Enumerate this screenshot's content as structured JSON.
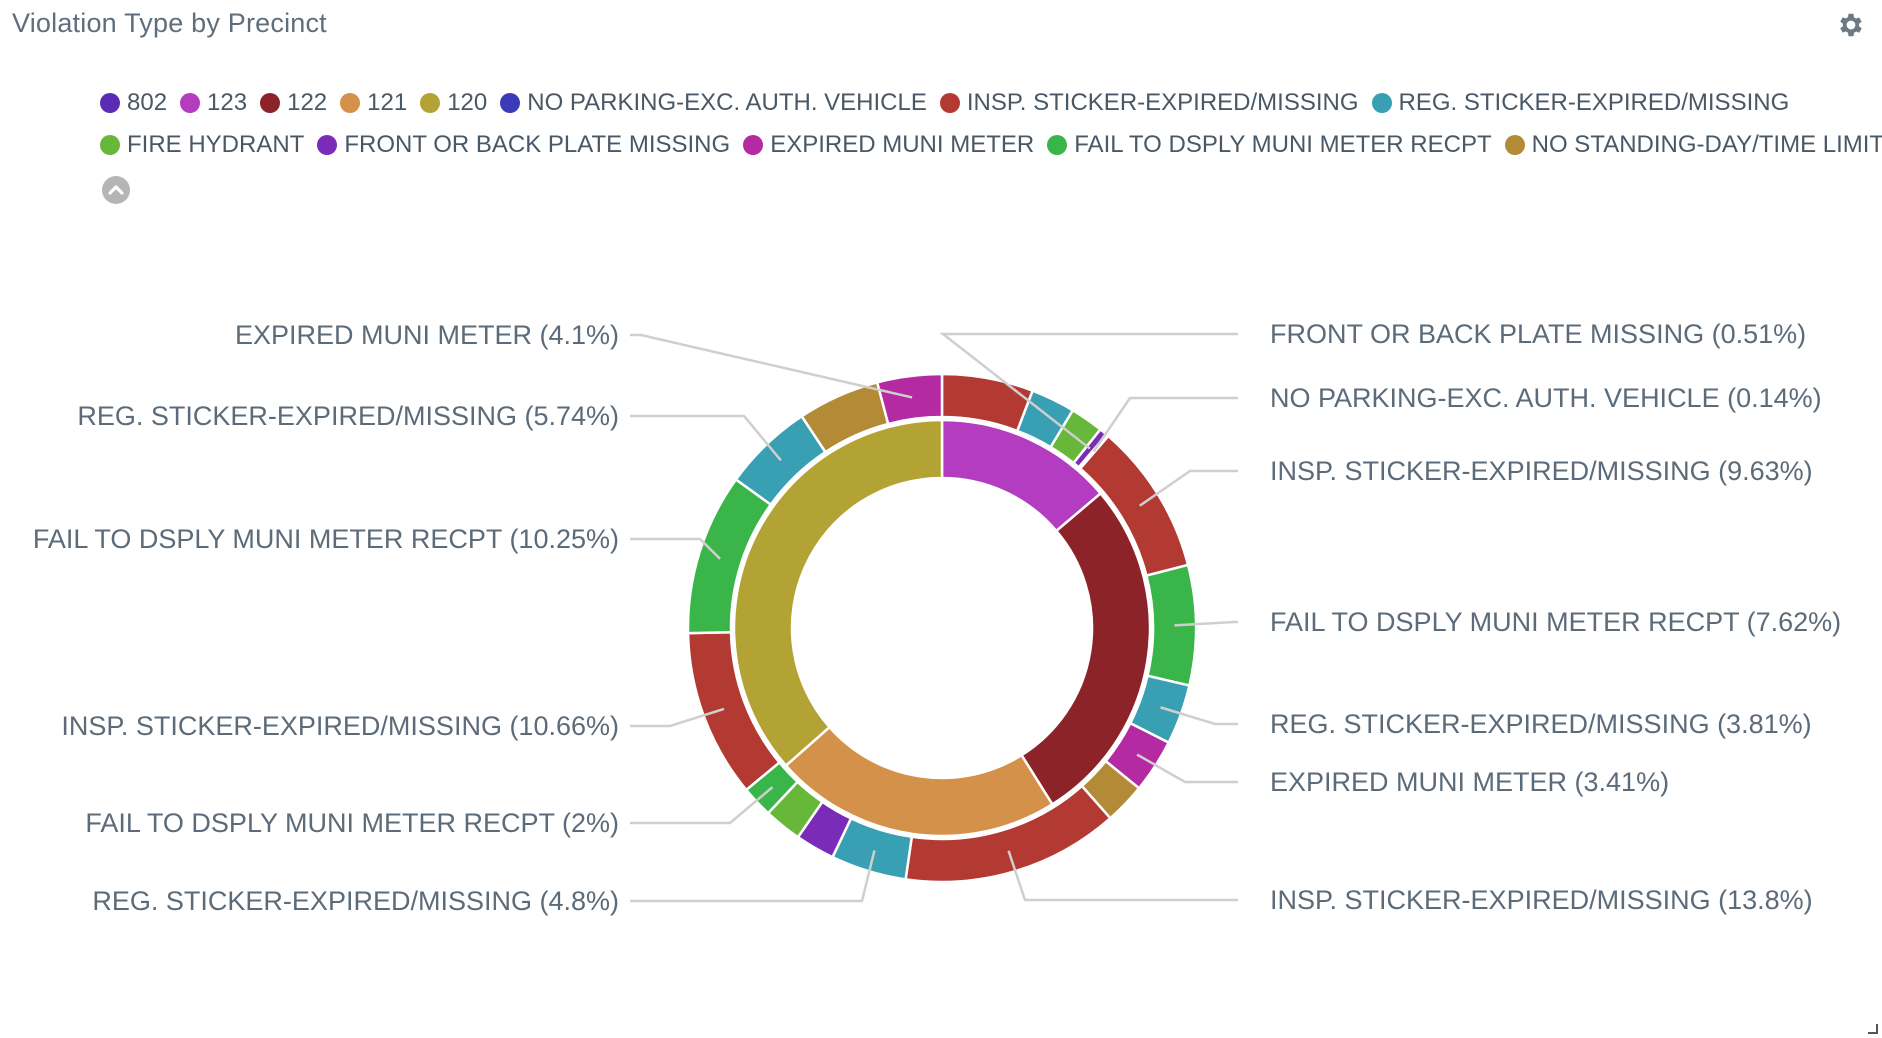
{
  "widget": {
    "title": "Violation Type by Precinct"
  },
  "icons": {
    "settings": "gear-icon",
    "legend_toggle": "chevron-up-icon"
  },
  "chart_data": {
    "type": "pie",
    "variant": "nested-donut",
    "title": "Violation Type by Precinct",
    "legend": {
      "placement": "top-left",
      "items": [
        {
          "label": "802",
          "color": "#5b2bb5"
        },
        {
          "label": "123",
          "color": "#b33cc0"
        },
        {
          "label": "122",
          "color": "#8c2328"
        },
        {
          "label": "121",
          "color": "#d4914a"
        },
        {
          "label": "120",
          "color": "#b3a334"
        },
        {
          "label": "NO PARKING-EXC. AUTH. VEHICLE",
          "color": "#3a3bb8"
        },
        {
          "label": "INSP. STICKER-EXPIRED/MISSING",
          "color": "#b33a33"
        },
        {
          "label": "REG. STICKER-EXPIRED/MISSING",
          "color": "#39a0b3"
        },
        {
          "label": "FIRE HYDRANT",
          "color": "#67b73a"
        },
        {
          "label": "FRONT OR BACK PLATE MISSING",
          "color": "#7a2cb8"
        },
        {
          "label": "EXPIRED MUNI METER",
          "color": "#b32aa3"
        },
        {
          "label": "FAIL TO DSPLY MUNI METER RECPT",
          "color": "#3ab54a"
        },
        {
          "label": "NO STANDING-DAY/TIME LIMITS",
          "color": "#b38a36"
        }
      ]
    },
    "inner_ring": [
      {
        "name": "123",
        "value": 13.8,
        "color": "#b33cc0"
      },
      {
        "name": "122",
        "value": 27.3,
        "color": "#8c2328"
      },
      {
        "name": "121",
        "value": 22.4,
        "color": "#d4914a"
      },
      {
        "name": "120",
        "value": 36.5,
        "color": "#b3a334"
      }
    ],
    "outer_ring": [
      {
        "name": "INSP. STICKER-EXPIRED/MISSING",
        "value": 5.8,
        "color": "#b33a33"
      },
      {
        "name": "REG. STICKER-EXPIRED/MISSING",
        "value": 2.8,
        "color": "#39a0b3"
      },
      {
        "name": "FIRE HYDRANT",
        "value": 2.1,
        "color": "#67b73a"
      },
      {
        "name": "FRONT OR BACK PLATE MISSING",
        "value": 0.51,
        "color": "#7a2cb8",
        "label": "FRONT OR BACK PLATE MISSING (0.51%)"
      },
      {
        "name": "NO PARKING-EXC. AUTH. VEHICLE",
        "value": 0.14,
        "color": "#3a3bb8",
        "label": "NO PARKING-EXC. AUTH. VEHICLE (0.14%)"
      },
      {
        "name": "INSP. STICKER-EXPIRED/MISSING",
        "value": 9.63,
        "color": "#b33a33",
        "label": "INSP. STICKER-EXPIRED/MISSING (9.63%)"
      },
      {
        "name": "FAIL TO DSPLY MUNI METER RECPT",
        "value": 7.62,
        "color": "#3ab54a",
        "label": "FAIL TO DSPLY MUNI METER RECPT (7.62%)"
      },
      {
        "name": "REG. STICKER-EXPIRED/MISSING",
        "value": 3.81,
        "color": "#39a0b3",
        "label": "REG. STICKER-EXPIRED/MISSING (3.81%)"
      },
      {
        "name": "EXPIRED MUNI METER",
        "value": 3.41,
        "color": "#b32aa3",
        "label": "EXPIRED MUNI METER (3.41%)"
      },
      {
        "name": "NO STANDING-DAY/TIME LIMITS",
        "value": 2.6,
        "color": "#b38a36"
      },
      {
        "name": "INSP. STICKER-EXPIRED/MISSING",
        "value": 13.8,
        "color": "#b33a33",
        "label": "INSP. STICKER-EXPIRED/MISSING (13.8%)"
      },
      {
        "name": "REG. STICKER-EXPIRED/MISSING",
        "value": 4.8,
        "color": "#39a0b3",
        "label": "REG. STICKER-EXPIRED/MISSING (4.8%)"
      },
      {
        "name": "FRONT OR BACK PLATE MISSING",
        "value": 2.5,
        "color": "#7a2cb8"
      },
      {
        "name": "FIRE HYDRANT",
        "value": 2.4,
        "color": "#67b73a"
      },
      {
        "name": "FAIL TO DSPLY MUNI METER RECPT",
        "value": 2.0,
        "color": "#3ab54a",
        "label": "FAIL TO DSPLY MUNI METER RECPT (2%)"
      },
      {
        "name": "INSP. STICKER-EXPIRED/MISSING",
        "value": 10.66,
        "color": "#b33a33",
        "label": "INSP. STICKER-EXPIRED/MISSING (10.66%)"
      },
      {
        "name": "FAIL TO DSPLY MUNI METER RECPT",
        "value": 10.25,
        "color": "#3ab54a",
        "label": "FAIL TO DSPLY MUNI METER RECPT (10.25%)"
      },
      {
        "name": "REG. STICKER-EXPIRED/MISSING",
        "value": 5.74,
        "color": "#39a0b3",
        "label": "REG. STICKER-EXPIRED/MISSING (5.74%)"
      },
      {
        "name": "NO STANDING-DAY/TIME LIMITS",
        "value": 5.2,
        "color": "#b38a36"
      },
      {
        "name": "EXPIRED MUNI METER",
        "value": 4.1,
        "color": "#b32aa3",
        "label": "EXPIRED MUNI METER (4.1%)"
      }
    ]
  }
}
